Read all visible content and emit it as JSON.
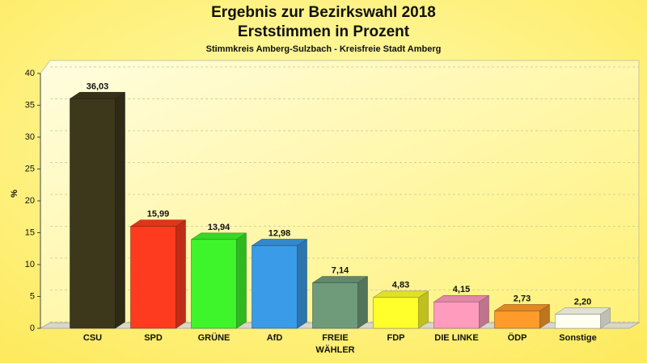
{
  "chart_data": {
    "type": "bar3d",
    "title": "Ergebnis zur Bezirkswahl 2018",
    "subtitle": "Erststimmen in Prozent",
    "caption": "Stimmkreis Amberg-Sulzbach - Kreisfreie Stadt Amberg",
    "ylabel": "%",
    "categories": [
      "CSU",
      "SPD",
      "GRÜNE",
      "AfD",
      "FREIE\nWÄHLER",
      "FDP",
      "DIE LINKE",
      "ÖDP",
      "Sonstige"
    ],
    "values": [
      36.03,
      15.99,
      13.94,
      12.98,
      7.14,
      4.83,
      4.15,
      2.73,
      2.2
    ],
    "value_labels": [
      "36,03",
      "15,99",
      "13,94",
      "12,98",
      "7,14",
      "4,83",
      "4,15",
      "2,73",
      "2,20"
    ],
    "colors": [
      "#3d381c",
      "#ff3b1f",
      "#3ef52b",
      "#3a9be8",
      "#6f9b7b",
      "#ffff2b",
      "#ff9bbd",
      "#ff9b2a",
      "#fffff2"
    ],
    "ylim": [
      0,
      40
    ],
    "yticks": [
      0,
      5,
      10,
      15,
      20,
      25,
      30,
      35,
      40
    ],
    "grid": true
  }
}
